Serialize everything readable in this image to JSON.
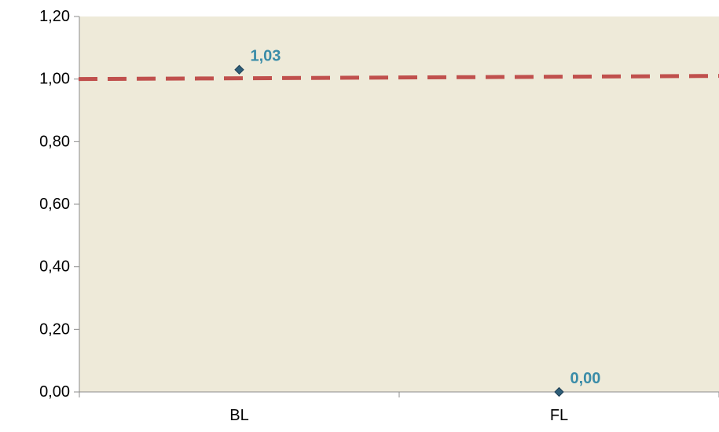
{
  "chart_data": {
    "type": "scatter",
    "categories": [
      "BL",
      "FL"
    ],
    "values": [
      1.03,
      0.0
    ],
    "data_labels": [
      "1,03",
      "0,00"
    ],
    "ylim": [
      0,
      1.2
    ],
    "yticks": [
      0.0,
      0.2,
      0.4,
      0.6,
      0.8,
      1.0,
      1.2
    ],
    "ytick_labels": [
      "0,00",
      "0,20",
      "0,40",
      "0,60",
      "0,80",
      "1,00",
      "1,20"
    ],
    "reference_line": {
      "y": 1.0,
      "style": "dashed"
    },
    "grid": false,
    "legend": "none",
    "colors": {
      "plot_background": "#EEEAD9",
      "marker": "#2E5E78",
      "data_label": "#3A8CA8",
      "reference_line": "#C0504D",
      "axis": "#8C8C8C"
    }
  }
}
